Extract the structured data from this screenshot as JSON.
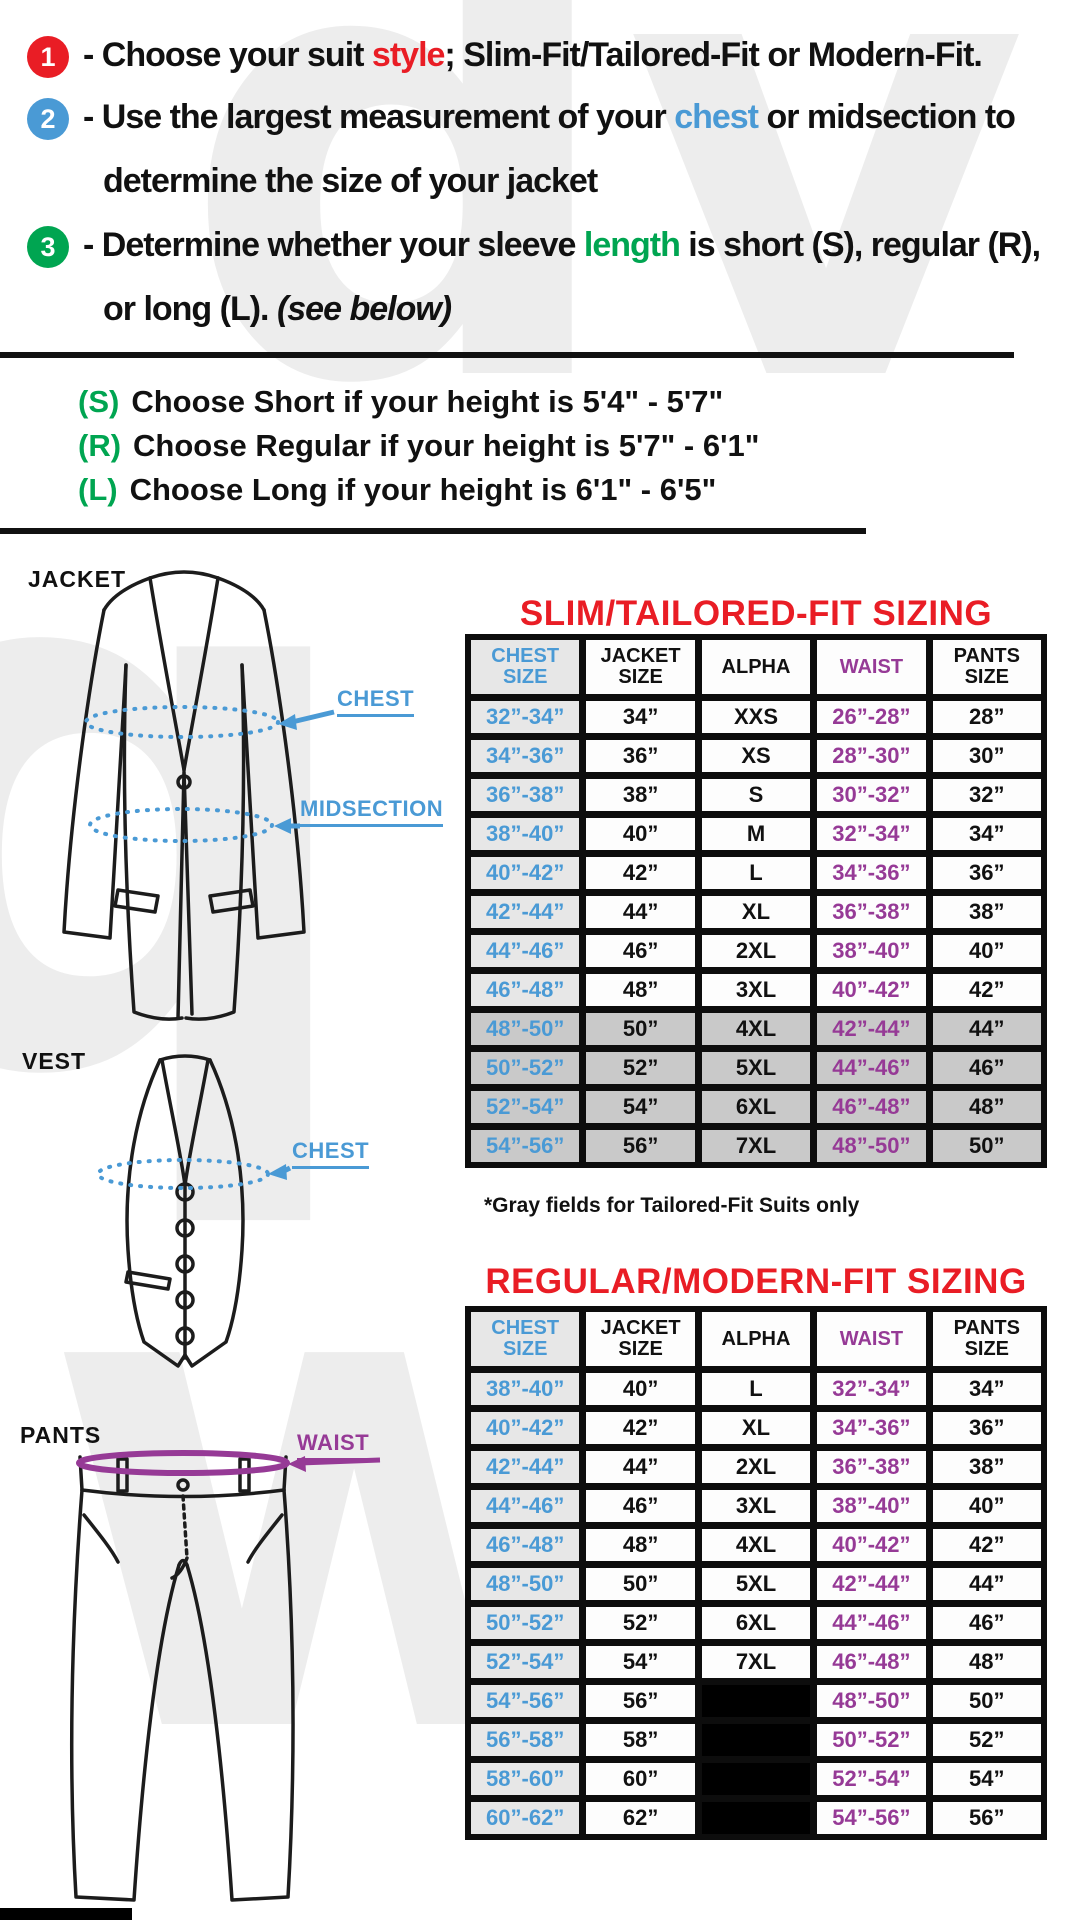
{
  "colors": {
    "red": "#e91d25",
    "blue": "#4a9ad5",
    "green": "#00a551",
    "purple": "#963a96",
    "gray_row": "#c9c9c9",
    "chest_col_bg": "#e7e7e7"
  },
  "instructions": [
    {
      "num": "1",
      "pre": "- Choose your suit ",
      "highlight": "style",
      "highlight_color": "#e91d25",
      "post": "; Slim-Fit/Tailored-Fit or Modern-Fit."
    },
    {
      "num": "2",
      "pre": "- Use the largest measurement of your ",
      "highlight": "chest",
      "highlight_color": "#4a9ad5",
      "post": " or midsection to",
      "cont": "determine the size of your jacket"
    },
    {
      "num": "3",
      "pre": "- Determine whether your sleeve ",
      "highlight": "length",
      "highlight_color": "#00a551",
      "post": " is short (S), regular (R),",
      "cont": "or long (L). ",
      "cont_italic": "(see below)"
    }
  ],
  "height_guide": [
    {
      "letter": "(S)",
      "text": "Choose Short if your height is 5'4\" - 5'7\""
    },
    {
      "letter": "(R)",
      "text": "Choose Regular if your height is  5'7\" - 6'1\""
    },
    {
      "letter": "(L)",
      "text": "Choose Long if your height is  6'1\" - 6'5\""
    }
  ],
  "diagrams": {
    "jacket_label": "JACKET",
    "vest_label": "VEST",
    "pants_label": "PANTS",
    "jacket_chest_label": "CHEST",
    "jacket_midsection_label": "MIDSECTION",
    "vest_chest_label": "CHEST",
    "pants_waist_label": "WAIST"
  },
  "slim_table": {
    "title": "SLIM/TAILORED-FIT SIZING",
    "headers": [
      [
        "CHEST",
        "SIZE"
      ],
      [
        "JACKET",
        "SIZE"
      ],
      [
        "ALPHA"
      ],
      [
        "WAIST"
      ],
      [
        "PANTS",
        "SIZE"
      ]
    ],
    "rows": [
      {
        "chest": "32”-34”",
        "jacket": "34”",
        "alpha": "XXS",
        "waist": "26”-28”",
        "pants": "28”",
        "gray": false
      },
      {
        "chest": "34”-36”",
        "jacket": "36”",
        "alpha": "XS",
        "waist": "28”-30”",
        "pants": "30”",
        "gray": false
      },
      {
        "chest": "36”-38”",
        "jacket": "38”",
        "alpha": "S",
        "waist": "30”-32”",
        "pants": "32”",
        "gray": false
      },
      {
        "chest": "38”-40”",
        "jacket": "40”",
        "alpha": "M",
        "waist": "32”-34”",
        "pants": "34”",
        "gray": false
      },
      {
        "chest": "40”-42”",
        "jacket": "42”",
        "alpha": "L",
        "waist": "34”-36”",
        "pants": "36”",
        "gray": false
      },
      {
        "chest": "42”-44”",
        "jacket": "44”",
        "alpha": "XL",
        "waist": "36”-38”",
        "pants": "38”",
        "gray": false
      },
      {
        "chest": "44”-46”",
        "jacket": "46”",
        "alpha": "2XL",
        "waist": "38”-40”",
        "pants": "40”",
        "gray": false
      },
      {
        "chest": "46”-48”",
        "jacket": "48”",
        "alpha": "3XL",
        "waist": "40”-42”",
        "pants": "42”",
        "gray": false
      },
      {
        "chest": "48”-50”",
        "jacket": "50”",
        "alpha": "4XL",
        "waist": "42”-44”",
        "pants": "44”",
        "gray": true
      },
      {
        "chest": "50”-52”",
        "jacket": "52”",
        "alpha": "5XL",
        "waist": "44”-46”",
        "pants": "46”",
        "gray": true
      },
      {
        "chest": "52”-54”",
        "jacket": "54”",
        "alpha": "6XL",
        "waist": "46”-48”",
        "pants": "48”",
        "gray": true
      },
      {
        "chest": "54”-56”",
        "jacket": "56”",
        "alpha": "7XL",
        "waist": "48”-50”",
        "pants": "50”",
        "gray": true
      }
    ],
    "footnote": "*Gray fields for Tailored-Fit Suits only"
  },
  "regular_table": {
    "title": "REGULAR/MODERN-FIT SIZING",
    "headers": [
      [
        "CHEST",
        "SIZE"
      ],
      [
        "JACKET",
        "SIZE"
      ],
      [
        "ALPHA"
      ],
      [
        "WAIST"
      ],
      [
        "PANTS",
        "SIZE"
      ]
    ],
    "rows": [
      {
        "chest": "38”-40”",
        "jacket": "40”",
        "alpha": "L",
        "waist": "32”-34”",
        "pants": "34”",
        "gray": false
      },
      {
        "chest": "40”-42”",
        "jacket": "42”",
        "alpha": "XL",
        "waist": "34”-36”",
        "pants": "36”",
        "gray": false
      },
      {
        "chest": "42”-44”",
        "jacket": "44”",
        "alpha": "2XL",
        "waist": "36”-38”",
        "pants": "38”",
        "gray": false
      },
      {
        "chest": "44”-46”",
        "jacket": "46”",
        "alpha": "3XL",
        "waist": "38”-40”",
        "pants": "40”",
        "gray": false
      },
      {
        "chest": "46”-48”",
        "jacket": "48”",
        "alpha": "4XL",
        "waist": "40”-42”",
        "pants": "42”",
        "gray": false
      },
      {
        "chest": "48”-50”",
        "jacket": "50”",
        "alpha": "5XL",
        "waist": "42”-44”",
        "pants": "44”",
        "gray": false
      },
      {
        "chest": "50”-52”",
        "jacket": "52”",
        "alpha": "6XL",
        "waist": "44”-46”",
        "pants": "46”",
        "gray": false
      },
      {
        "chest": "52”-54”",
        "jacket": "54”",
        "alpha": "7XL",
        "waist": "46”-48”",
        "pants": "48”",
        "gray": false
      },
      {
        "chest": "54”-56”",
        "jacket": "56”",
        "alpha": "",
        "alpha_black": true,
        "waist": "48”-50”",
        "pants": "50”",
        "gray": false
      },
      {
        "chest": "56”-58”",
        "jacket": "58”",
        "alpha": "",
        "alpha_black": true,
        "waist": "50”-52”",
        "pants": "52”",
        "gray": false
      },
      {
        "chest": "58”-60”",
        "jacket": "60”",
        "alpha": "",
        "alpha_black": true,
        "waist": "52”-54”",
        "pants": "54”",
        "gray": false
      },
      {
        "chest": "60”-62”",
        "jacket": "62”",
        "alpha": "",
        "alpha_black": true,
        "waist": "54”-56”",
        "pants": "56”",
        "gray": false
      }
    ]
  }
}
